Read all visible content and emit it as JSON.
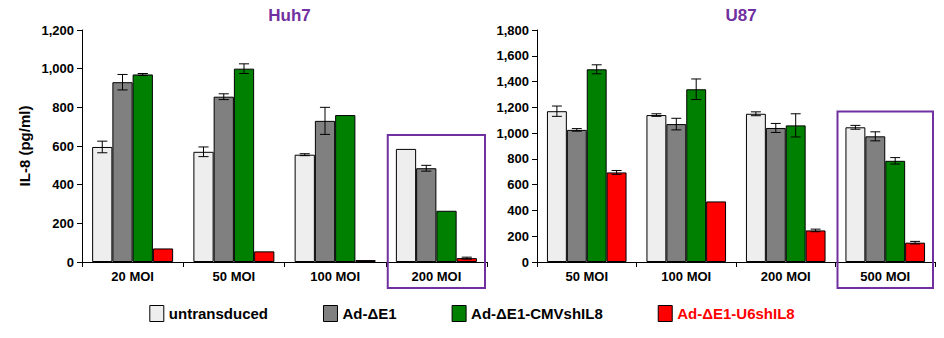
{
  "chart_data": [
    {
      "type": "bar",
      "title": "Huh7",
      "y_label": "IL-8 (pg/ml)",
      "categories": [
        "20 MOI",
        "50 MOI",
        "100 MOI",
        "200 MOI"
      ],
      "series": [
        {
          "name": "untransduced",
          "color": "#eeeeee",
          "values": [
            595,
            570,
            555,
            585
          ],
          "errors": [
            30,
            25,
            5,
            0
          ]
        },
        {
          "name": "Ad-ΔE1",
          "color": "#808080",
          "values": [
            930,
            855,
            730,
            485
          ],
          "errors": [
            40,
            15,
            70,
            15
          ]
        },
        {
          "name": "Ad-ΔE1-CMVshIL8",
          "color": "#008000",
          "values": [
            970,
            1000,
            760,
            265
          ],
          "errors": [
            5,
            25,
            0,
            0
          ]
        },
        {
          "name": "Ad-ΔE1-U6shIL8",
          "color": "#ff0000",
          "values": [
            70,
            55,
            10,
            20
          ],
          "errors": [
            0,
            0,
            0,
            5
          ]
        }
      ],
      "ylim": [
        0,
        1200
      ],
      "yticks": [
        0,
        200,
        400,
        600,
        800,
        1000,
        1200
      ],
      "grid": false,
      "legend": "bottom"
    },
    {
      "type": "bar",
      "title": "U87",
      "categories": [
        "50 MOI",
        "100 MOI",
        "200 MOI",
        "500 MOI"
      ],
      "series": [
        {
          "name": "untransduced",
          "color": "#eeeeee",
          "values": [
            1170,
            1140,
            1150,
            1045
          ],
          "errors": [
            40,
            10,
            15,
            15
          ]
        },
        {
          "name": "Ad-ΔE1",
          "color": "#808080",
          "values": [
            1025,
            1070,
            1040,
            975
          ],
          "errors": [
            10,
            45,
            35,
            35
          ]
        },
        {
          "name": "Ad-ΔE1-CMVshIL8",
          "color": "#008000",
          "values": [
            1495,
            1340,
            1060,
            785
          ],
          "errors": [
            35,
            80,
            90,
            25
          ]
        },
        {
          "name": "Ad-ΔE1-U6shIL8",
          "color": "#ff0000",
          "values": [
            695,
            470,
            245,
            150
          ],
          "errors": [
            15,
            0,
            10,
            10
          ]
        }
      ],
      "ylim": [
        0,
        1800
      ],
      "yticks": [
        0,
        200,
        400,
        600,
        800,
        1000,
        1200,
        1400,
        1600,
        1800
      ],
      "grid": false,
      "legend": "bottom"
    }
  ]
}
